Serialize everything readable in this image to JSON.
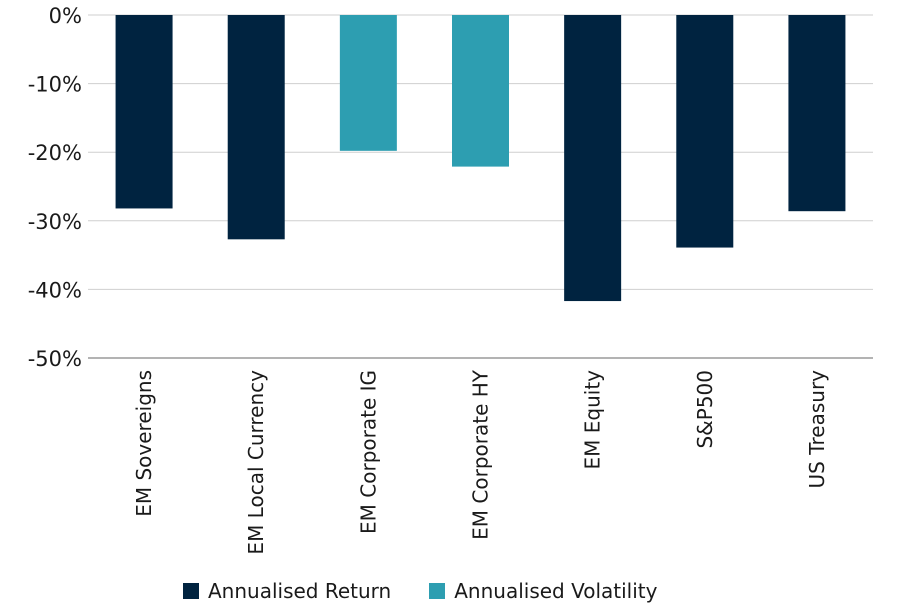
{
  "chart_data": {
    "type": "bar",
    "categories": [
      "EM Sovereigns",
      "EM Local Currency",
      "EM Corporate IG",
      "EM Corporate HY",
      "EM Equity",
      "S&P500",
      "US Treasury"
    ],
    "values": [
      -28.2,
      -32.7,
      -19.8,
      -22.1,
      -41.7,
      -33.9,
      -28.6
    ],
    "bar_series": [
      "Annualised Return",
      "Annualised Return",
      "Annualised Volatility",
      "Annualised Volatility",
      "Annualised Return",
      "Annualised Return",
      "Annualised Return"
    ],
    "y_ticks": [
      0,
      -10,
      -20,
      -30,
      -40,
      -50
    ],
    "y_tick_labels": [
      "0%",
      "-10%",
      "-20%",
      "-30%",
      "-40%",
      "-50%"
    ],
    "ylim": [
      -50,
      0
    ],
    "grid": true,
    "legend_placement": "bottom-center",
    "legend": [
      {
        "name": "Annualised Return",
        "color": "#002340"
      },
      {
        "name": "Annualised Volatility",
        "color": "#2d9eb1"
      }
    ]
  }
}
